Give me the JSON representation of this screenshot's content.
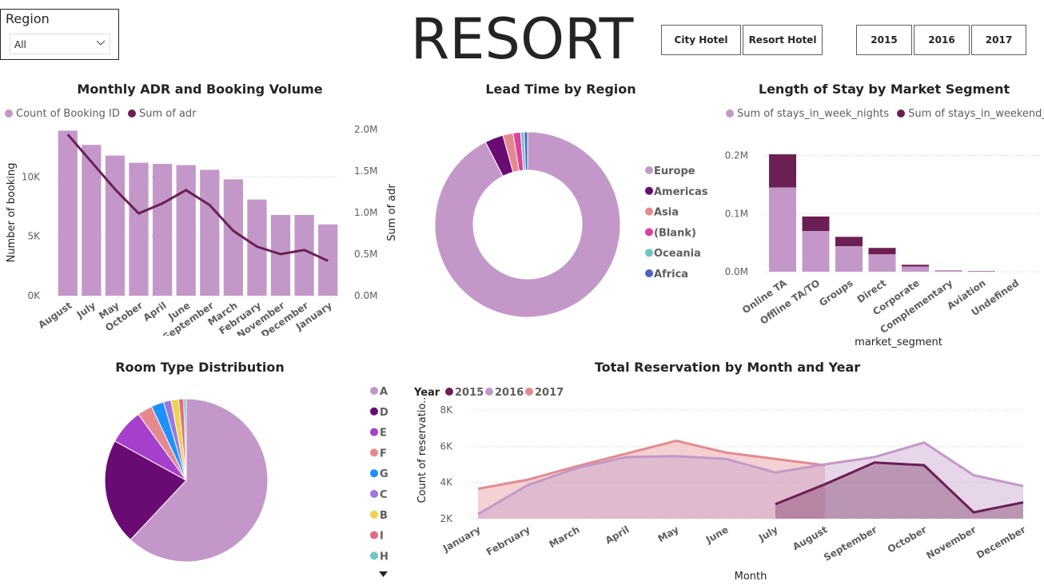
{
  "slicer": {
    "title": "Region",
    "value": "All"
  },
  "page_title": "RESORT",
  "hotel_buttons": [
    "City Hotel",
    "Resort Hotel"
  ],
  "year_buttons": [
    "2015",
    "2016",
    "2017"
  ],
  "chart_data": [
    {
      "type": "bar",
      "title": "Monthly ADR and Booking Volume",
      "legend": [
        "Count of Booking ID",
        "Sum of adr"
      ],
      "categories": [
        "August",
        "July",
        "May",
        "October",
        "April",
        "June",
        "September",
        "March",
        "February",
        "November",
        "December",
        "January"
      ],
      "series": [
        {
          "name": "Count of Booking ID",
          "type": "bar",
          "color": "#c398c9",
          "values": [
            13900,
            12700,
            11800,
            11200,
            11100,
            11000,
            10600,
            9800,
            8100,
            6800,
            6800,
            6000
          ]
        },
        {
          "name": "Sum of adr",
          "type": "line",
          "color": "#6b1f52",
          "values": [
            1940000,
            1610000,
            1280000,
            990000,
            1110000,
            1270000,
            1090000,
            780000,
            590000,
            500000,
            550000,
            420000
          ]
        }
      ],
      "ylabel": "Number of booking",
      "y2label": "Sum of adr",
      "yticks": [
        "0K",
        "5K",
        "10K"
      ],
      "y2ticks": [
        "0.0M",
        "0.5M",
        "1.0M",
        "1.5M",
        "2.0M"
      ],
      "ylim": [
        0,
        14000
      ],
      "y2lim": [
        0,
        2000000
      ]
    },
    {
      "type": "pie",
      "title": "Lead Time by Region",
      "labels": [
        "Europe",
        "Americas",
        "Asia",
        "(Blank)",
        "Oceania",
        "Africa"
      ],
      "values": [
        92.5,
        3.2,
        1.8,
        1.3,
        0.6,
        0.6
      ],
      "colors": [
        "#c398c9",
        "#6a0b74",
        "#e48a8f",
        "#e040a0",
        "#6ec5c5",
        "#4d63c8"
      ]
    },
    {
      "type": "bar",
      "title": "Length of Stay by Market Segment",
      "legend": [
        "Sum of stays_in_week_nights",
        "Sum of stays_in_weekend_nig..."
      ],
      "xlabel": "market_segment",
      "categories": [
        "Online TA",
        "Offline TA/TO",
        "Groups",
        "Direct",
        "Corporate",
        "Complementary",
        "Aviation",
        "Undefined"
      ],
      "series": [
        {
          "name": "Sum of stays_in_week_nights",
          "color": "#c398c9",
          "values": [
            145000,
            70000,
            44000,
            30000,
            9000,
            1500,
            1000,
            0
          ]
        },
        {
          "name": "Sum of stays_in_weekend_nights",
          "color": "#6b1f52",
          "values": [
            57000,
            25000,
            16000,
            11000,
            3000,
            600,
            400,
            0
          ]
        }
      ],
      "yticks": [
        "0.0M",
        "0.1M",
        "0.2M"
      ],
      "ylim": [
        0,
        220000
      ]
    },
    {
      "type": "pie",
      "title": "Room Type Distribution",
      "labels": [
        "A",
        "D",
        "E",
        "F",
        "G",
        "C",
        "B",
        "I",
        "H"
      ],
      "values": [
        62,
        21,
        7,
        3,
        2.5,
        1.5,
        1.5,
        1,
        0.5
      ],
      "colors": [
        "#c398c9",
        "#6a0b74",
        "#a53fcc",
        "#e48a8f",
        "#1e90ff",
        "#9b77e0",
        "#f0d24c",
        "#e06c7e",
        "#6ec5c5"
      ]
    },
    {
      "type": "area",
      "title": "Total Reservation by Month and Year",
      "legend_title": "Year",
      "xlabel": "Month",
      "ylabel": "Count of reservatio...",
      "categories": [
        "January",
        "February",
        "March",
        "April",
        "May",
        "June",
        "July",
        "August",
        "September",
        "October",
        "November",
        "December"
      ],
      "yticks": [
        "2K",
        "4K",
        "6K",
        "8K"
      ],
      "ylim": [
        2000,
        8000
      ],
      "series": [
        {
          "name": "2015",
          "color": "#6b1f52",
          "values": [
            null,
            null,
            null,
            null,
            null,
            null,
            2800,
            3900,
            5100,
            4950,
            2350,
            2900
          ]
        },
        {
          "name": "2016",
          "color": "#c398c9",
          "values": [
            2250,
            3850,
            4800,
            5400,
            5450,
            5300,
            4550,
            5000,
            5400,
            6200,
            4400,
            3800
          ]
        },
        {
          "name": "2017",
          "color": "#e48a8f",
          "values": [
            3650,
            4150,
            4900,
            5600,
            6300,
            5650,
            5300,
            4950,
            null,
            null,
            null,
            null
          ]
        }
      ]
    }
  ]
}
